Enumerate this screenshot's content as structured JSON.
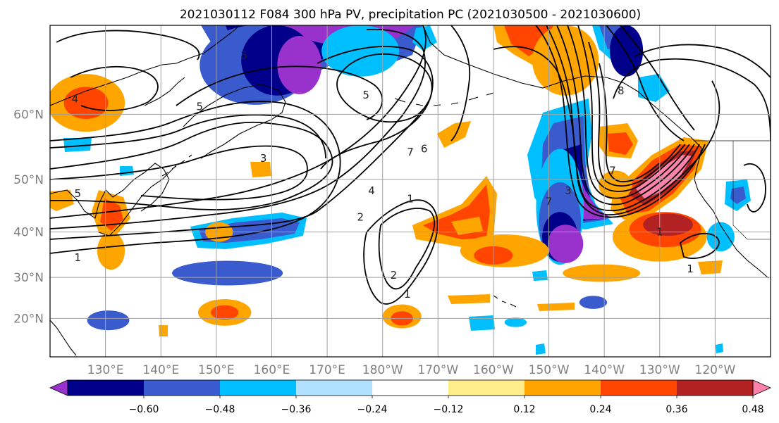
{
  "title": "2021030112 F084 300 hPa PV, precipitation PC (2021030500 - 2021030600)",
  "map": {
    "lon_range": [
      120,
      250
    ],
    "lat_range": [
      10,
      70
    ],
    "lon_ticks": [
      {
        "lon": 130,
        "label": "130°E"
      },
      {
        "lon": 140,
        "label": "140°E"
      },
      {
        "lon": 150,
        "label": "150°E"
      },
      {
        "lon": 160,
        "label": "160°E"
      },
      {
        "lon": 170,
        "label": "170°E"
      },
      {
        "lon": 180,
        "label": "180°W"
      },
      {
        "lon": 190,
        "label": "170°W"
      },
      {
        "lon": 200,
        "label": "160°W"
      },
      {
        "lon": 210,
        "label": "150°W"
      },
      {
        "lon": 220,
        "label": "140°W"
      },
      {
        "lon": 230,
        "label": "130°W"
      },
      {
        "lon": 240,
        "label": "120°W"
      }
    ],
    "lat_ticks": [
      {
        "lat": 20,
        "label": "20°N"
      },
      {
        "lat": 30,
        "label": "30°N"
      },
      {
        "lat": 40,
        "label": "40°N"
      },
      {
        "lat": 50,
        "label": "50°N"
      },
      {
        "lat": 60,
        "label": "60°N"
      }
    ],
    "grid": true
  },
  "colorbar": {
    "colors": [
      "#9932CC",
      "#00008B",
      "#3A5BCD",
      "#00BFFF",
      "#B0E2FF",
      "#FFFFFF",
      "#FFEC8B",
      "#FFA500",
      "#FF4500",
      "#B22222",
      "#FF82AB"
    ],
    "tick_labels": [
      "−0.60",
      "−0.48",
      "−0.36",
      "−0.24",
      "−0.12",
      "0.12",
      "0.24",
      "0.36",
      "0.48",
      "0.60"
    ],
    "extend": "both"
  },
  "contour_labels": [
    {
      "text": "5",
      "lon": 147,
      "lat": 61
    },
    {
      "text": "4",
      "lon": 124.5,
      "lat": 62
    },
    {
      "text": "5",
      "lon": 125,
      "lat": 47.5
    },
    {
      "text": "5",
      "lon": 155,
      "lat": 67
    },
    {
      "text": "3",
      "lon": 158.5,
      "lat": 53.5
    },
    {
      "text": "5",
      "lon": 177,
      "lat": 62.5
    },
    {
      "text": "7",
      "lon": 185,
      "lat": 54.5
    },
    {
      "text": "6",
      "lon": 187.5,
      "lat": 55
    },
    {
      "text": "4",
      "lon": 178,
      "lat": 48
    },
    {
      "text": "1",
      "lon": 185,
      "lat": 46.5
    },
    {
      "text": "2",
      "lon": 176,
      "lat": 43
    },
    {
      "text": "1",
      "lon": 125,
      "lat": 34.5
    },
    {
      "text": "2",
      "lon": 182,
      "lat": 30.5
    },
    {
      "text": "1",
      "lon": 184.5,
      "lat": 26
    },
    {
      "text": "7",
      "lon": 210,
      "lat": 46
    },
    {
      "text": "3",
      "lon": 213.5,
      "lat": 48
    },
    {
      "text": "7",
      "lon": 221.5,
      "lat": 51.5
    },
    {
      "text": "8",
      "lon": 223,
      "lat": 63
    },
    {
      "text": "1",
      "lon": 230,
      "lat": 40
    },
    {
      "text": "1",
      "lon": 235.5,
      "lat": 32
    }
  ],
  "fields": {
    "neg_blobs": [
      {
        "lon": 157,
        "lat": 66,
        "rx": 10,
        "ry": 4,
        "level": 2
      },
      {
        "lon": 161,
        "lat": 66.5,
        "rx": 6.5,
        "ry": 3.5,
        "level": 1
      },
      {
        "lon": 165,
        "lat": 66,
        "rx": 4,
        "ry": 3,
        "level": 0
      },
      {
        "lon": 176,
        "lat": 67.5,
        "rx": 7,
        "ry": 2.5,
        "level": 3
      },
      {
        "lon": 152,
        "lat": 31,
        "rx": 10,
        "ry": 2.8,
        "level": 2
      },
      {
        "lon": 130.5,
        "lat": 19.5,
        "rx": 3.8,
        "ry": 2.5,
        "level": 2
      },
      {
        "lon": 212,
        "lat": 45,
        "rx": 4.3,
        "ry": 10,
        "level": 3
      },
      {
        "lon": 212,
        "lat": 42,
        "rx": 3.8,
        "ry": 7.5,
        "level": 2
      },
      {
        "lon": 212,
        "lat": 39,
        "rx": 3.2,
        "ry": 5,
        "level": 1
      },
      {
        "lon": 213,
        "lat": 37.5,
        "rx": 3.2,
        "ry": 4,
        "level": 0
      },
      {
        "lon": 218,
        "lat": 24,
        "rx": 2.5,
        "ry": 1.6,
        "level": 2
      },
      {
        "lon": 224,
        "lat": 67.5,
        "rx": 3,
        "ry": 2.5,
        "level": 1
      },
      {
        "lon": 241,
        "lat": 39,
        "rx": 2.5,
        "ry": 3,
        "level": 3
      },
      {
        "lon": 204,
        "lat": 19,
        "rx": 2,
        "ry": 1.2,
        "level": 3
      }
    ],
    "pos_blobs": [
      {
        "lon": 126.5,
        "lat": 61.5,
        "rx": 7,
        "ry": 3.5,
        "level": 2
      },
      {
        "lon": 126.5,
        "lat": 61.5,
        "rx": 4,
        "ry": 2,
        "level": 3
      },
      {
        "lon": 202,
        "lat": 36,
        "rx": 8,
        "ry": 3.5,
        "level": 2
      },
      {
        "lon": 200,
        "lat": 35,
        "rx": 3.5,
        "ry": 2,
        "level": 3
      },
      {
        "lon": 151.5,
        "lat": 21.5,
        "rx": 4.8,
        "ry": 3.3,
        "level": 2
      },
      {
        "lon": 151.5,
        "lat": 21.5,
        "rx": 2.5,
        "ry": 1.8,
        "level": 3
      },
      {
        "lon": 183.5,
        "lat": 20.5,
        "rx": 3.5,
        "ry": 3,
        "level": 2
      },
      {
        "lon": 183.5,
        "lat": 20,
        "rx": 2,
        "ry": 1.8,
        "level": 3
      },
      {
        "lon": 230,
        "lat": 39,
        "rx": 8.5,
        "ry": 5,
        "level": 2
      },
      {
        "lon": 231,
        "lat": 40.5,
        "rx": 6.5,
        "ry": 3.5,
        "level": 3
      },
      {
        "lon": 231.5,
        "lat": 41.5,
        "rx": 4.5,
        "ry": 2.2,
        "level": 4
      },
      {
        "lon": 219.5,
        "lat": 31,
        "rx": 7,
        "ry": 2,
        "level": 2
      },
      {
        "lon": 213,
        "lat": 66.5,
        "rx": 6,
        "ry": 3.5,
        "level": 2
      },
      {
        "lon": 222,
        "lat": 49,
        "rx": 3,
        "ry": 2.5,
        "level": 2
      },
      {
        "lon": 150.5,
        "lat": 40,
        "rx": 2.5,
        "ry": 2,
        "level": 2
      },
      {
        "lon": 131,
        "lat": 36,
        "rx": 2.5,
        "ry": 4,
        "level": 2
      }
    ]
  }
}
